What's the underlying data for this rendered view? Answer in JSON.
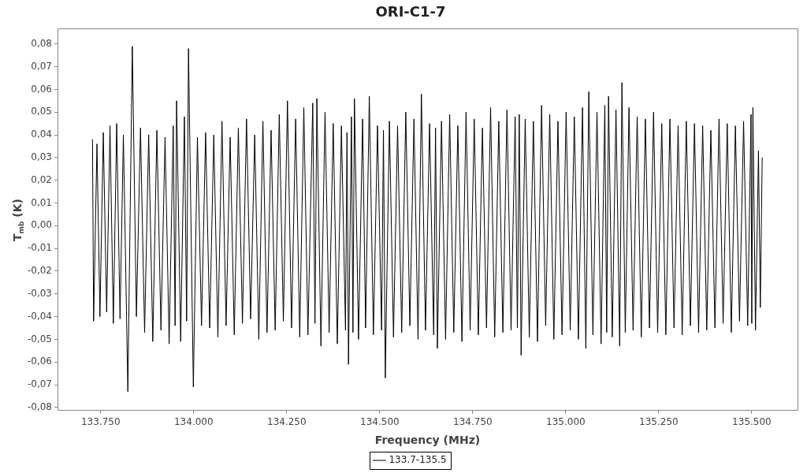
{
  "chart_data": {
    "type": "line",
    "title": "ORI-C1-7",
    "xlabel": "Frequency (MHz)",
    "ylabel": "T$_{mb}$ (K)",
    "xlim": [
      133634,
      135623
    ],
    "ylim": [
      -0.081,
      0.087
    ],
    "xticks": [
      {
        "value": 133750,
        "label": "133.750"
      },
      {
        "value": 134000,
        "label": "134.000"
      },
      {
        "value": 134250,
        "label": "134.250"
      },
      {
        "value": 134500,
        "label": "134.500"
      },
      {
        "value": 134750,
        "label": "134.750"
      },
      {
        "value": 135000,
        "label": "135.000"
      },
      {
        "value": 135250,
        "label": "135.250"
      },
      {
        "value": 135500,
        "label": "135.500"
      }
    ],
    "yticks": [
      {
        "value": -0.08,
        "label": "-0,08"
      },
      {
        "value": -0.07,
        "label": "-0,07"
      },
      {
        "value": -0.06,
        "label": "-0,06"
      },
      {
        "value": -0.05,
        "label": "-0,05"
      },
      {
        "value": -0.04,
        "label": "-0,04"
      },
      {
        "value": -0.03,
        "label": "-0,03"
      },
      {
        "value": -0.02,
        "label": "-0,02"
      },
      {
        "value": -0.01,
        "label": "-0,01"
      },
      {
        "value": 0,
        "label": "0,00"
      },
      {
        "value": 0.01,
        "label": "0,01"
      },
      {
        "value": 0.02,
        "label": "0,02"
      },
      {
        "value": 0.03,
        "label": "0,03"
      },
      {
        "value": 0.04,
        "label": "0,04"
      },
      {
        "value": 0.05,
        "label": "0,05"
      },
      {
        "value": 0.06,
        "label": "0,06"
      },
      {
        "value": 0.07,
        "label": "0,07"
      },
      {
        "value": 0.08,
        "label": "0,08"
      }
    ],
    "legend": "bottom",
    "x": [
      133728,
      133731,
      133740,
      133748,
      133757,
      133766,
      133775,
      133784,
      133793,
      133802,
      133811,
      133823,
      133835,
      133846,
      133857,
      133868,
      133879,
      133890,
      133901,
      133912,
      133923,
      133934,
      133945,
      133950,
      133954,
      133965,
      133975,
      133981,
      133986,
      133999,
      134010,
      134021,
      134032,
      134043,
      134054,
      134065,
      134076,
      134087,
      134098,
      134109,
      134120,
      134131,
      134142,
      134153,
      134164,
      134175,
      134186,
      134197,
      134208,
      134219,
      134230,
      134241,
      134252,
      134263,
      134274,
      134285,
      134296,
      134307,
      134320,
      134326,
      134331,
      134342,
      134353,
      134364,
      134375,
      134386,
      134397,
      134408,
      134412,
      134416,
      134424,
      134428,
      134432,
      134443,
      134454,
      134462,
      134472,
      134483,
      134494,
      134505,
      134510,
      134515,
      134526,
      134537,
      134548,
      134559,
      134570,
      134581,
      134592,
      134603,
      134612,
      134623,
      134634,
      134645,
      134650,
      134655,
      134666,
      134677,
      134688,
      134699,
      134710,
      134721,
      134732,
      134743,
      134754,
      134765,
      134776,
      134787,
      134798,
      134809,
      134820,
      134831,
      134842,
      134853,
      134864,
      134870,
      134875,
      134880,
      134891,
      134902,
      134913,
      134924,
      134935,
      134946,
      134957,
      134968,
      134979,
      134990,
      135001,
      135012,
      135023,
      135034,
      135045,
      135054,
      135062,
      135073,
      135084,
      135095,
      135105,
      135110,
      135115,
      135125,
      135135,
      135145,
      135151,
      135160,
      135170,
      135181,
      135192,
      135203,
      135214,
      135225,
      135236,
      135247,
      135258,
      135269,
      135280,
      135291,
      135302,
      135313,
      135324,
      135335,
      135346,
      135357,
      135368,
      135379,
      135390,
      135401,
      135412,
      135423,
      135434,
      135445,
      135456,
      135467,
      135478,
      135489,
      135498,
      135500,
      135503,
      135510,
      135518,
      135523,
      135528
    ],
    "series": [
      {
        "name": "133.7-135.5",
        "color": "#000000",
        "values": [
          0.038,
          -0.042,
          0.036,
          -0.04,
          0.041,
          -0.038,
          0.044,
          -0.043,
          0.045,
          -0.041,
          0.04,
          -0.073,
          0.079,
          -0.04,
          0.043,
          -0.047,
          0.04,
          -0.051,
          0.042,
          -0.046,
          0.039,
          -0.052,
          0.044,
          -0.044,
          0.055,
          -0.051,
          0.048,
          -0.042,
          0.078,
          -0.071,
          0.039,
          -0.044,
          0.041,
          -0.045,
          0.04,
          -0.049,
          0.046,
          -0.044,
          0.039,
          -0.048,
          0.043,
          -0.043,
          0.047,
          -0.041,
          0.04,
          -0.05,
          0.046,
          -0.047,
          0.042,
          -0.046,
          0.049,
          -0.042,
          0.055,
          -0.045,
          0.047,
          -0.049,
          0.052,
          -0.048,
          0.054,
          -0.043,
          0.056,
          -0.053,
          0.05,
          -0.047,
          0.045,
          -0.052,
          0.044,
          -0.046,
          0.041,
          -0.061,
          0.048,
          -0.047,
          0.056,
          -0.05,
          0.047,
          -0.045,
          0.057,
          -0.048,
          0.044,
          -0.046,
          0.042,
          -0.067,
          0.046,
          -0.049,
          0.044,
          -0.047,
          0.05,
          -0.044,
          0.047,
          -0.05,
          0.058,
          -0.046,
          0.045,
          -0.048,
          0.043,
          -0.054,
          0.046,
          -0.05,
          0.049,
          -0.047,
          0.044,
          -0.051,
          0.05,
          -0.046,
          0.047,
          -0.048,
          0.043,
          -0.045,
          0.052,
          -0.049,
          0.046,
          -0.047,
          0.051,
          -0.046,
          0.048,
          -0.045,
          0.049,
          -0.057,
          0.047,
          -0.049,
          0.046,
          -0.051,
          0.053,
          -0.044,
          0.049,
          -0.05,
          0.046,
          -0.048,
          0.05,
          -0.046,
          0.048,
          -0.05,
          0.052,
          -0.054,
          0.059,
          -0.048,
          0.05,
          -0.052,
          0.053,
          -0.047,
          0.057,
          -0.049,
          0.051,
          -0.053,
          0.063,
          -0.047,
          0.052,
          -0.046,
          0.048,
          -0.049,
          0.047,
          -0.045,
          0.05,
          -0.047,
          0.045,
          -0.048,
          0.047,
          -0.045,
          0.044,
          -0.048,
          0.046,
          -0.044,
          0.045,
          -0.047,
          0.044,
          -0.046,
          0.042,
          -0.045,
          0.047,
          -0.043,
          0.045,
          -0.047,
          0.044,
          -0.042,
          0.046,
          -0.044,
          0.049,
          -0.043,
          0.052,
          -0.046,
          0.033,
          -0.036,
          0.03
        ]
      }
    ]
  }
}
